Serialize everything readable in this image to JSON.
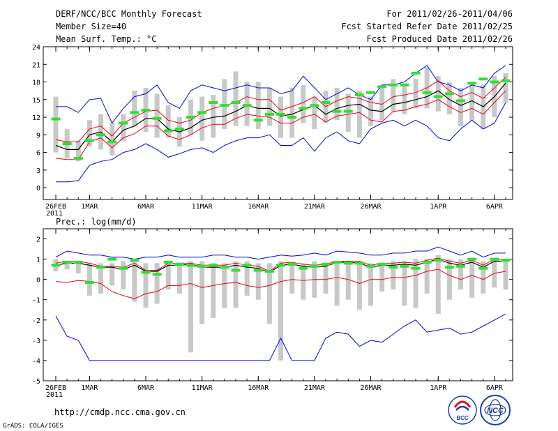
{
  "header": {
    "title": "DERF/NCC/BCC Monthly Forecast",
    "member_size": "Member Size=40",
    "variable": "Mean Surf. Temp.: °C",
    "period": "For 2011/02/26-2011/04/06",
    "started": "Fcst Started Refer Date 2011/02/25",
    "produced": "Fcst Produced Date 2011/02/26"
  },
  "footer": {
    "url": "http://cmdp.ncc.cma.gov.cn",
    "credit": "GrADS: COLA/IGES",
    "logo_left_text": "BCC",
    "logo_right_text": "NCC"
  },
  "colors": {
    "ensemble_mean": "#000000",
    "spread": "#e8001c",
    "extreme": "#0000e0",
    "box": "#c8c8c8",
    "climatology": "#30e030"
  },
  "chart_data": [
    {
      "type": "box-line",
      "title": "Mean Surf. Temp.: °C",
      "xlabel": "",
      "ylabel": "°C",
      "ylim": [
        -2,
        24
      ],
      "yticks": [
        0,
        3,
        6,
        9,
        12,
        15,
        18,
        21,
        24
      ],
      "xticks": [
        {
          "day": 0,
          "label": "26FEB",
          "sub": "2011"
        },
        {
          "day": 3,
          "label": "1MAR"
        },
        {
          "day": 8,
          "label": "6MAR"
        },
        {
          "day": 13,
          "label": "11MAR"
        },
        {
          "day": 18,
          "label": "16MAR"
        },
        {
          "day": 23,
          "label": "21MAR"
        },
        {
          "day": 28,
          "label": "26MAR"
        },
        {
          "day": 34,
          "label": "1APR"
        },
        {
          "day": 39,
          "label": "6APR"
        }
      ],
      "series": [
        {
          "name": "ensemble_mean",
          "values": [
            7.2,
            6.5,
            6.5,
            9.0,
            9.5,
            7.8,
            9.8,
            10.5,
            11.8,
            11.8,
            10.0,
            9.5,
            10.2,
            11.5,
            12.0,
            12.2,
            13.0,
            14.0,
            13.5,
            13.5,
            12.2,
            12.5,
            13.3,
            14.0,
            12.5,
            13.5,
            14.0,
            14.2,
            13.2,
            13.0,
            14.2,
            14.5,
            15.0,
            15.5,
            16.5,
            15.0,
            14.0,
            14.8,
            13.8,
            15.5,
            17.8
          ]
        },
        {
          "name": "upper_spread",
          "values": [
            8.2,
            7.8,
            7.8,
            10.0,
            10.5,
            8.8,
            11.0,
            12.0,
            13.0,
            13.2,
            11.5,
            11.0,
            11.5,
            12.8,
            13.5,
            14.0,
            14.5,
            15.5,
            15.0,
            15.0,
            13.2,
            13.8,
            14.5,
            15.5,
            13.8,
            14.8,
            15.5,
            15.2,
            14.5,
            14.2,
            15.5,
            15.8,
            16.2,
            17.0,
            18.2,
            16.5,
            15.5,
            16.2,
            15.2,
            17.0,
            18.8
          ]
        },
        {
          "name": "lower_spread",
          "values": [
            5.0,
            4.8,
            4.8,
            7.8,
            8.5,
            6.8,
            8.5,
            9.2,
            10.5,
            10.5,
            8.8,
            8.2,
            9.0,
            10.2,
            10.8,
            10.8,
            11.8,
            12.5,
            12.2,
            12.0,
            11.0,
            11.0,
            12.0,
            12.5,
            11.2,
            12.2,
            12.5,
            12.8,
            11.5,
            11.2,
            13.0,
            13.2,
            13.8,
            14.2,
            15.0,
            13.8,
            12.8,
            13.5,
            12.5,
            14.5,
            16.5
          ]
        },
        {
          "name": "max_member",
          "values": [
            13.8,
            13.8,
            12.8,
            15.0,
            15.2,
            11.0,
            13.5,
            15.5,
            16.0,
            17.5,
            14.5,
            13.5,
            16.5,
            17.5,
            17.0,
            16.5,
            17.0,
            17.5,
            17.0,
            17.0,
            16.0,
            16.5,
            19.0,
            17.0,
            15.0,
            16.0,
            17.0,
            15.8,
            15.0,
            17.5,
            17.5,
            18.0,
            19.5,
            20.8,
            18.0,
            17.5,
            16.5,
            17.5,
            17.0,
            19.5,
            20.8
          ]
        },
        {
          "name": "min_member",
          "values": [
            1.0,
            1.0,
            1.2,
            3.8,
            4.5,
            4.8,
            6.0,
            6.5,
            7.5,
            6.5,
            5.2,
            5.8,
            6.5,
            6.8,
            6.0,
            7.2,
            8.0,
            8.5,
            8.5,
            9.0,
            7.2,
            7.2,
            8.5,
            6.2,
            8.5,
            9.5,
            8.0,
            7.5,
            10.0,
            11.0,
            11.5,
            10.5,
            11.5,
            10.5,
            8.5,
            8.0,
            10.0,
            11.5,
            10.0,
            11.0,
            14.5
          ]
        },
        {
          "name": "box_high",
          "values": [
            15.5,
            10.0,
            8.0,
            11.5,
            12.5,
            11.0,
            12.5,
            16.5,
            17.0,
            16.0,
            14.0,
            12.0,
            15.0,
            15.5,
            15.8,
            18.5,
            19.8,
            18.0,
            18.0,
            17.0,
            15.5,
            17.0,
            17.5,
            15.5,
            16.5,
            17.0,
            16.0,
            16.5,
            15.5,
            17.0,
            18.5,
            17.5,
            18.5,
            20.5,
            19.0,
            18.0,
            17.0,
            18.0,
            17.5,
            19.0,
            19.5
          ]
        },
        {
          "name": "box_low",
          "values": [
            6.0,
            5.0,
            4.5,
            7.0,
            6.5,
            5.5,
            8.0,
            10.5,
            9.5,
            8.5,
            8.5,
            7.0,
            9.0,
            8.0,
            8.5,
            10.0,
            10.5,
            10.5,
            10.0,
            10.5,
            8.5,
            8.5,
            11.0,
            10.0,
            11.0,
            11.5,
            9.5,
            8.5,
            10.5,
            11.5,
            13.0,
            12.5,
            13.5,
            13.5,
            13.0,
            12.5,
            10.5,
            11.5,
            10.0,
            12.0,
            14.5
          ]
        },
        {
          "name": "climatology",
          "values": [
            11.7,
            7.5,
            5.0,
            8.0,
            9.0,
            7.8,
            11.0,
            12.8,
            13.2,
            11.8,
            9.7,
            10.0,
            12.0,
            12.8,
            14.5,
            14.0,
            14.5,
            14.0,
            11.5,
            12.5,
            12.5,
            12.0,
            13.5,
            14.0,
            14.5,
            13.0,
            13.0,
            15.8,
            16.2,
            17.2,
            17.5,
            17.5,
            19.5,
            16.2,
            15.5,
            16.0,
            14.8,
            17.8,
            18.5,
            18.0,
            18.2
          ]
        }
      ]
    },
    {
      "type": "box-line",
      "title": "Prec.: log(mm/d)",
      "xlabel": "",
      "ylabel": "log(mm/d)",
      "ylim": [
        -5,
        2.5
      ],
      "yticks": [
        -5,
        -4,
        -3,
        -2,
        -1,
        0,
        1,
        2
      ],
      "xticks": [
        {
          "day": 0,
          "label": "26FEB",
          "sub": "2011"
        },
        {
          "day": 3,
          "label": "1MAR"
        },
        {
          "day": 8,
          "label": "6MAR"
        },
        {
          "day": 13,
          "label": "11MAR"
        },
        {
          "day": 18,
          "label": "16MAR"
        },
        {
          "day": 23,
          "label": "21MAR"
        },
        {
          "day": 28,
          "label": "26MAR"
        },
        {
          "day": 34,
          "label": "1APR"
        },
        {
          "day": 39,
          "label": "6APR"
        }
      ],
      "series": [
        {
          "name": "ensemble_mean",
          "values": [
            0.7,
            0.8,
            0.8,
            0.7,
            0.6,
            0.6,
            0.5,
            0.7,
            0.4,
            0.4,
            0.7,
            0.7,
            0.75,
            0.6,
            0.6,
            0.6,
            0.7,
            0.6,
            0.55,
            0.35,
            0.7,
            0.75,
            0.65,
            0.6,
            0.65,
            0.85,
            0.85,
            0.8,
            0.6,
            0.7,
            0.7,
            0.75,
            0.7,
            0.85,
            1.0,
            0.8,
            0.7,
            0.85,
            0.6,
            0.9,
            0.9
          ]
        },
        {
          "name": "upper_spread",
          "values": [
            0.8,
            0.9,
            0.9,
            0.8,
            0.65,
            0.65,
            0.6,
            0.8,
            0.45,
            0.45,
            0.8,
            0.8,
            0.8,
            0.7,
            0.7,
            0.7,
            0.8,
            0.7,
            0.65,
            0.4,
            0.8,
            0.85,
            0.75,
            0.7,
            0.75,
            0.9,
            0.9,
            0.9,
            0.7,
            0.8,
            0.8,
            0.85,
            0.8,
            0.95,
            1.05,
            0.9,
            0.8,
            0.95,
            0.7,
            1.0,
            1.0
          ]
        },
        {
          "name": "lower_spread",
          "values": [
            -0.1,
            -0.15,
            -0.05,
            -0.1,
            -0.2,
            -0.6,
            -0.8,
            -0.95,
            -0.7,
            -0.6,
            -0.3,
            -0.3,
            -0.2,
            -0.4,
            -0.3,
            -0.2,
            -0.15,
            -0.3,
            -0.4,
            -0.3,
            -0.1,
            0.0,
            -0.05,
            0.0,
            0.0,
            0.1,
            0.0,
            -0.2,
            0.0,
            0.0,
            0.1,
            0.1,
            0.2,
            0.4,
            0.5,
            0.2,
            0.0,
            0.2,
            0.0,
            0.3,
            0.4
          ]
        },
        {
          "name": "max_member",
          "values": [
            1.1,
            1.4,
            1.3,
            1.2,
            1.2,
            1.1,
            1.1,
            1.0,
            1.1,
            1.1,
            1.2,
            1.1,
            1.1,
            1.1,
            1.2,
            1.2,
            1.1,
            1.1,
            1.0,
            1.1,
            1.2,
            1.15,
            1.2,
            1.3,
            1.2,
            1.4,
            1.35,
            1.3,
            1.2,
            1.2,
            1.3,
            1.3,
            1.4,
            1.4,
            1.6,
            1.4,
            1.2,
            1.4,
            1.1,
            1.3,
            1.3
          ]
        },
        {
          "name": "min_member",
          "values": [
            -1.8,
            -2.8,
            -3.0,
            -4.0,
            -4.0,
            -4.0,
            -4.0,
            -4.0,
            -4.0,
            -4.0,
            -4.0,
            -4.0,
            -4.0,
            -4.0,
            -4.0,
            -4.0,
            -4.0,
            -4.0,
            -4.0,
            -4.0,
            -2.9,
            -4.0,
            -4.0,
            -4.0,
            -2.9,
            -2.6,
            -2.7,
            -3.3,
            -3.0,
            -3.1,
            -2.7,
            -2.3,
            -2.0,
            -2.6,
            -2.5,
            -2.4,
            -2.7,
            -2.6,
            -2.3,
            -2.0,
            -1.7
          ]
        },
        {
          "name": "box_high",
          "values": [
            1.0,
            0.9,
            0.9,
            0.8,
            0.8,
            0.8,
            0.9,
            0.9,
            0.8,
            0.8,
            0.8,
            0.8,
            0.9,
            0.9,
            0.8,
            0.8,
            0.9,
            0.9,
            0.8,
            0.8,
            0.9,
            0.8,
            0.8,
            0.9,
            0.8,
            0.9,
            0.9,
            0.9,
            0.8,
            0.8,
            0.9,
            0.9,
            1.0,
            1.0,
            1.2,
            1.0,
            1.0,
            1.0,
            0.9,
            1.0,
            1.0
          ]
        },
        {
          "name": "box_low",
          "values": [
            0.4,
            0.5,
            0.3,
            -0.8,
            -0.7,
            -0.3,
            -0.5,
            -1.1,
            -1.4,
            -1.2,
            -0.5,
            -0.7,
            -3.6,
            -2.2,
            -1.9,
            -1.4,
            -1.4,
            -0.8,
            -1.0,
            -2.2,
            -4.0,
            -0.7,
            -1.0,
            -0.9,
            -0.7,
            -1.3,
            -1.0,
            -1.5,
            -1.3,
            -0.6,
            -0.5,
            -1.3,
            -1.4,
            -0.7,
            -1.7,
            -1.0,
            -0.5,
            -0.9,
            -0.7,
            -0.4,
            -0.5
          ]
        },
        {
          "name": "climatology",
          "values": [
            0.7,
            0.85,
            0.85,
            -0.15,
            0.6,
            1.0,
            0.55,
            0.95,
            0.35,
            0.25,
            0.85,
            0.75,
            0.7,
            0.65,
            0.7,
            0.6,
            0.45,
            0.7,
            0.45,
            0.4,
            0.7,
            0.75,
            0.55,
            0.65,
            0.75,
            0.85,
            0.8,
            0.8,
            0.65,
            0.75,
            0.6,
            0.65,
            0.55,
            0.85,
            0.95,
            0.6,
            0.65,
            1.0,
            0.55,
            1.0,
            0.95
          ]
        }
      ]
    }
  ]
}
